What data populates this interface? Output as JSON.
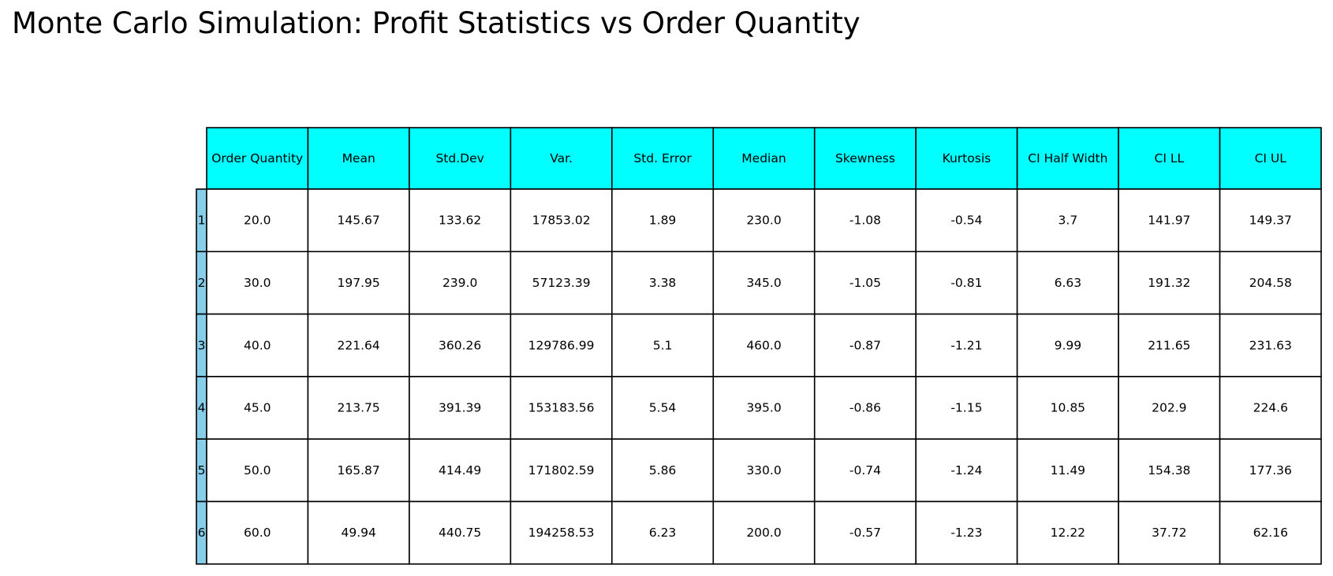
{
  "title": "Monte Carlo Simulation: Profit Statistics vs Order Quantity",
  "colors": {
    "header_bg": "#00FFFF",
    "row_label_bg": "#87CEEB",
    "cell_bg": "#FFFFFF",
    "border": "#000000"
  },
  "chart_data": {
    "type": "table",
    "title": "Monte Carlo Simulation: Profit Statistics vs Order Quantity",
    "columns": [
      "Order Quantity",
      "Mean",
      "Std.Dev",
      "Var.",
      "Std. Error",
      "Median",
      "Skewness",
      "Kurtosis",
      "CI Half Width",
      "CI LL",
      "CI UL"
    ],
    "row_labels": [
      "1",
      "2",
      "3",
      "4",
      "5",
      "6"
    ],
    "rows": [
      [
        "20.0",
        "145.67",
        "133.62",
        "17853.02",
        "1.89",
        "230.0",
        "-1.08",
        "-0.54",
        "3.7",
        "141.97",
        "149.37"
      ],
      [
        "30.0",
        "197.95",
        "239.0",
        "57123.39",
        "3.38",
        "345.0",
        "-1.05",
        "-0.81",
        "6.63",
        "191.32",
        "204.58"
      ],
      [
        "40.0",
        "221.64",
        "360.26",
        "129786.99",
        "5.1",
        "460.0",
        "-0.87",
        "-1.21",
        "9.99",
        "211.65",
        "231.63"
      ],
      [
        "45.0",
        "213.75",
        "391.39",
        "153183.56",
        "5.54",
        "395.0",
        "-0.86",
        "-1.15",
        "10.85",
        "202.9",
        "224.6"
      ],
      [
        "50.0",
        "165.87",
        "414.49",
        "171802.59",
        "5.86",
        "330.0",
        "-0.74",
        "-1.24",
        "11.49",
        "154.38",
        "177.36"
      ],
      [
        "60.0",
        "49.94",
        "440.75",
        "194258.53",
        "6.23",
        "200.0",
        "-0.57",
        "-1.23",
        "12.22",
        "37.72",
        "62.16"
      ]
    ]
  }
}
